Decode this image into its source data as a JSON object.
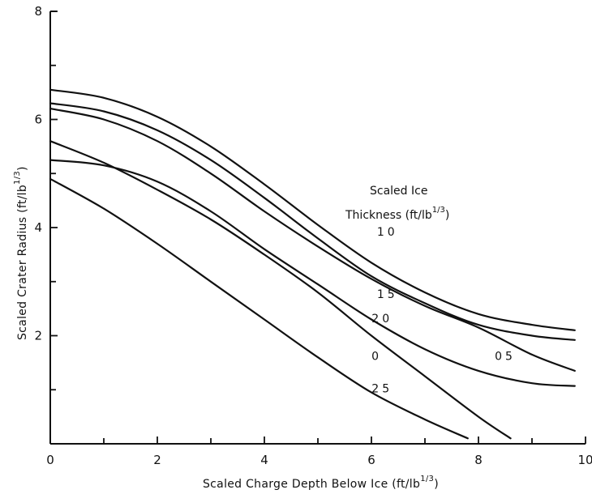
{
  "chart_data": {
    "type": "line",
    "xlabel": "Scaled Charge Depth Below Ice (ft/lb",
    "xlabel_sup": "1/3",
    "xlabel_end": ")",
    "ylabel": "Scaled Crater Radius (ft/lb",
    "ylabel_sup": "1/3",
    "ylabel_end": ")",
    "xlim": [
      0,
      10
    ],
    "ylim": [
      0,
      8
    ],
    "x_ticks": [
      "0",
      "2",
      "4",
      "6",
      "8",
      "10"
    ],
    "y_ticks": [
      "0",
      "2",
      "4",
      "6",
      "8"
    ],
    "legend_title_line1": "Scaled Ice",
    "legend_title_line2": "Thickness (ft/lb",
    "legend_title_sup": "1/3",
    "legend_title_end": ")",
    "grid": false,
    "series": [
      {
        "name": "10",
        "x": [
          0,
          1,
          2,
          3,
          4,
          5,
          6,
          7,
          8,
          9,
          9.8
        ],
        "y": [
          6.55,
          6.4,
          6.05,
          5.5,
          4.8,
          4.05,
          3.35,
          2.8,
          2.4,
          2.2,
          2.1
        ]
      },
      {
        "name": "15",
        "x": [
          0,
          1,
          2,
          3,
          4,
          5,
          6,
          7,
          8,
          9,
          9.8
        ],
        "y": [
          6.3,
          6.15,
          5.8,
          5.25,
          4.55,
          3.8,
          3.1,
          2.6,
          2.2,
          2.0,
          1.92
        ]
      },
      {
        "name": "05",
        "x": [
          0,
          1,
          2,
          3,
          4,
          5,
          6,
          7,
          8,
          9,
          9.8
        ],
        "y": [
          6.2,
          6.0,
          5.6,
          5.0,
          4.3,
          3.65,
          3.05,
          2.55,
          2.15,
          1.65,
          1.35
        ]
      },
      {
        "name": "20",
        "x": [
          0,
          1,
          2,
          3,
          4,
          5,
          6,
          7,
          8,
          9,
          9.8
        ],
        "y": [
          5.25,
          5.15,
          4.85,
          4.3,
          3.6,
          2.95,
          2.3,
          1.75,
          1.35,
          1.12,
          1.07
        ]
      },
      {
        "name": "0",
        "x": [
          0,
          1,
          2,
          3,
          4,
          5,
          6,
          7,
          8,
          8.6
        ],
        "y": [
          5.6,
          5.2,
          4.7,
          4.15,
          3.5,
          2.8,
          2.0,
          1.25,
          0.5,
          0.1
        ]
      },
      {
        "name": "25",
        "x": [
          0,
          1,
          2,
          3,
          4,
          5,
          6,
          7,
          7.8
        ],
        "y": [
          4.9,
          4.35,
          3.7,
          3.0,
          2.3,
          1.6,
          0.95,
          0.45,
          0.1
        ]
      }
    ],
    "curve_labels": [
      {
        "text": "10",
        "x": 6.3,
        "y": 3.85
      },
      {
        "text": "15",
        "x": 6.3,
        "y": 2.7
      },
      {
        "text": "20",
        "x": 6.2,
        "y": 2.25
      },
      {
        "text": "0",
        "x": 6.1,
        "y": 1.55
      },
      {
        "text": "25",
        "x": 6.2,
        "y": 0.95
      },
      {
        "text": "05",
        "x": 8.5,
        "y": 1.55
      }
    ]
  }
}
